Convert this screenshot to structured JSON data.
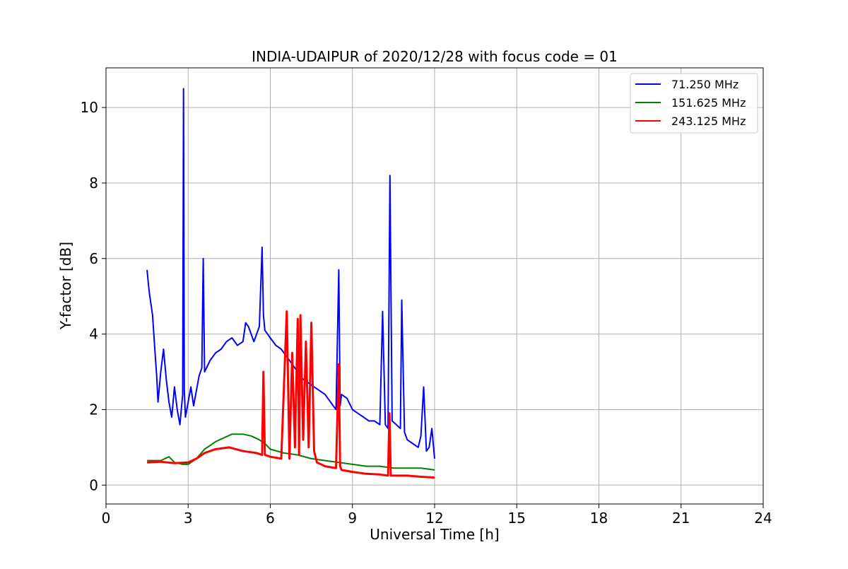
{
  "chart_data": {
    "type": "line",
    "title": "INDIA-UDAIPUR of 2020/12/28 with focus code = 01",
    "xlabel": "Universal Time [h]",
    "ylabel": "Y-factor [dB]",
    "xlim": [
      0,
      24
    ],
    "ylim": [
      -0.5,
      11.05
    ],
    "xticks": [
      "0",
      "3",
      "6",
      "9",
      "12",
      "15",
      "18",
      "21",
      "24"
    ],
    "yticks": [
      "0",
      "2",
      "4",
      "6",
      "8",
      "10"
    ],
    "grid": true,
    "legend_position": "top-right",
    "series": [
      {
        "name": "  71.250 MHz",
        "color": "#0000ff",
        "x": [
          1.5,
          1.55,
          1.6,
          1.7,
          1.8,
          1.85,
          1.9,
          2.0,
          2.1,
          2.2,
          2.3,
          2.4,
          2.5,
          2.6,
          2.7,
          2.8,
          2.83,
          2.86,
          2.9,
          3.0,
          3.1,
          3.2,
          3.3,
          3.4,
          3.5,
          3.55,
          3.6,
          3.8,
          4.0,
          4.2,
          4.4,
          4.6,
          4.8,
          5.0,
          5.1,
          5.2,
          5.4,
          5.6,
          5.7,
          5.75,
          5.8,
          6.0,
          6.2,
          6.4,
          6.6,
          6.8,
          7.0,
          7.2,
          7.4,
          7.6,
          7.8,
          8.0,
          8.2,
          8.4,
          8.5,
          8.55,
          8.6,
          8.8,
          9.0,
          9.2,
          9.4,
          9.6,
          9.8,
          10.0,
          10.1,
          10.2,
          10.3,
          10.37,
          10.45,
          10.6,
          10.75,
          10.8,
          10.9,
          11.0,
          11.2,
          11.4,
          11.5,
          11.6,
          11.7,
          11.8,
          11.9,
          12.0
        ],
        "values": [
          5.7,
          5.3,
          5.0,
          4.5,
          3.4,
          2.9,
          2.2,
          3.0,
          3.6,
          2.8,
          2.2,
          1.8,
          2.6,
          2.0,
          1.6,
          2.4,
          10.5,
          2.5,
          1.8,
          2.2,
          2.6,
          2.1,
          2.5,
          2.9,
          3.1,
          6.0,
          3.0,
          3.3,
          3.5,
          3.6,
          3.8,
          3.9,
          3.7,
          3.8,
          4.3,
          4.2,
          3.8,
          4.2,
          6.3,
          4.5,
          4.1,
          3.9,
          3.7,
          3.6,
          3.4,
          3.2,
          3.0,
          2.8,
          2.7,
          2.6,
          2.5,
          2.4,
          2.2,
          2.0,
          5.7,
          2.1,
          2.4,
          2.3,
          2.0,
          1.9,
          1.8,
          1.7,
          1.7,
          1.6,
          4.6,
          1.6,
          1.5,
          8.2,
          1.7,
          1.6,
          1.5,
          4.9,
          1.4,
          1.2,
          1.1,
          1.0,
          1.3,
          2.6,
          0.9,
          1.0,
          1.5,
          0.7
        ]
      },
      {
        "name": "151.625 MHz",
        "color": "#008000",
        "x": [
          1.5,
          2.0,
          2.3,
          2.5,
          2.8,
          3.0,
          3.3,
          3.6,
          4.0,
          4.3,
          4.6,
          5.0,
          5.3,
          5.6,
          5.8,
          6.0,
          6.5,
          7.0,
          7.5,
          8.0,
          8.5,
          9.0,
          9.5,
          10.0,
          10.5,
          11.0,
          11.5,
          12.0
        ],
        "values": [
          0.65,
          0.65,
          0.75,
          0.6,
          0.55,
          0.55,
          0.7,
          0.95,
          1.15,
          1.25,
          1.35,
          1.35,
          1.3,
          1.2,
          1.1,
          0.95,
          0.85,
          0.8,
          0.7,
          0.65,
          0.6,
          0.55,
          0.5,
          0.5,
          0.45,
          0.45,
          0.45,
          0.4
        ]
      },
      {
        "name": "243.125 MHz",
        "color": "#ff0000",
        "x": [
          1.5,
          2.0,
          2.5,
          3.0,
          3.3,
          3.6,
          4.0,
          4.5,
          5.0,
          5.5,
          5.7,
          5.75,
          5.8,
          6.0,
          6.4,
          6.6,
          6.7,
          6.8,
          6.9,
          7.0,
          7.05,
          7.1,
          7.2,
          7.3,
          7.4,
          7.5,
          7.6,
          7.7,
          8.0,
          8.4,
          8.5,
          8.55,
          8.6,
          9.0,
          9.5,
          10.0,
          10.3,
          10.35,
          10.4,
          11.0,
          11.5,
          12.0
        ],
        "values": [
          0.6,
          0.62,
          0.58,
          0.6,
          0.7,
          0.85,
          0.95,
          1.0,
          0.9,
          0.85,
          0.8,
          3.0,
          0.8,
          0.75,
          0.7,
          4.6,
          0.7,
          3.5,
          1.0,
          4.4,
          0.8,
          4.5,
          1.2,
          3.8,
          1.0,
          4.3,
          0.9,
          0.6,
          0.5,
          0.45,
          3.2,
          0.5,
          0.4,
          0.35,
          0.3,
          0.28,
          0.25,
          1.9,
          0.25,
          0.25,
          0.22,
          0.2
        ]
      }
    ]
  }
}
